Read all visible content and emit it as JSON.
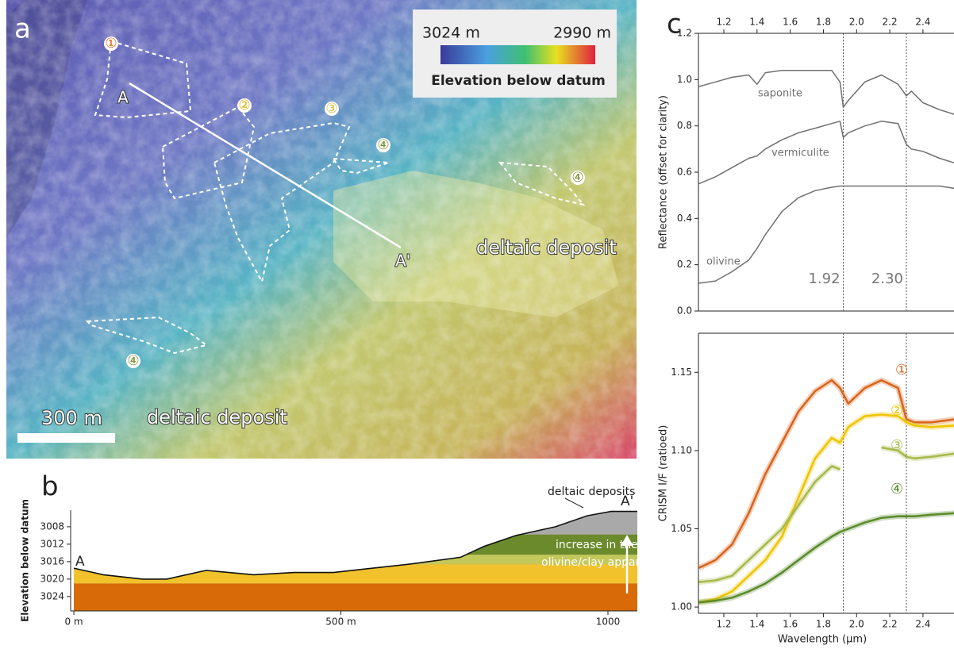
{
  "map": {
    "panel": "a",
    "legend": {
      "min_label": "3024 m",
      "max_label": "2990 m",
      "title": "Elevation below datum"
    },
    "labels": [
      "deltaic deposit",
      "deltaic deposit"
    ],
    "scale_bar": "300 m",
    "profile": {
      "start": "A",
      "end": "A'"
    },
    "regions": [
      "①",
      "②",
      "③",
      "④",
      "④",
      "④"
    ]
  },
  "chart_data": [
    {
      "type": "area",
      "panel": "b",
      "ylabel": "Elevation below datum",
      "x": [
        0,
        55,
        129,
        174,
        248,
        337,
        412,
        486,
        560,
        634,
        724,
        768,
        828,
        902,
        961,
        1006,
        1055
      ],
      "values": [
        3017.5,
        3019,
        3020,
        3020,
        3018,
        3019,
        3018.5,
        3018.5,
        3017.5,
        3016.5,
        3015,
        3012.5,
        3010,
        3008,
        3005.5,
        3004.5,
        3004.5
      ],
      "color": "#111111",
      "layers": [
        {
          "color": "#d86a08",
          "top": 3021
        },
        {
          "color": "#f2c22c",
          "top": 3016.6
        },
        {
          "color": "#c3c85a",
          "top": 3014.4
        },
        {
          "color": "#6b8a2c",
          "top": 3009.8
        }
      ],
      "deposit_color": "#a9a9a9",
      "xlim": [
        -6,
        1055
      ],
      "xticks": [
        {
          "value": 0,
          "label": "0 m"
        },
        {
          "value": 500,
          "label": "500 m"
        },
        1000
      ],
      "xaxis": "bottom",
      "ylim": [
        3027.3,
        3004.2
      ],
      "yticks": [
        3008,
        3012,
        3016,
        3020,
        3024
      ],
      "annotations": [
        "deltaic deposits",
        "increase in the",
        "olivine/clay apparent ratio",
        "A",
        "A'"
      ]
    },
    {
      "type": "line",
      "panel": "c",
      "ylabel": "Reflectance (offset for clarity)",
      "x": [
        1.05,
        1.15,
        1.25,
        1.35,
        1.4,
        1.45,
        1.55,
        1.65,
        1.75,
        1.85,
        1.9,
        1.92,
        1.95,
        2.05,
        2.15,
        2.25,
        2.3,
        2.33,
        2.4,
        2.5,
        2.59
      ],
      "series": [
        {
          "name": "saponite",
          "color": "#707070",
          "values": [
            0.97,
            0.99,
            1.01,
            1.02,
            0.98,
            1.03,
            1.04,
            1.04,
            1.04,
            1.04,
            0.99,
            0.88,
            0.91,
            0.99,
            1.02,
            0.98,
            0.93,
            0.95,
            0.9,
            0.87,
            0.85
          ]
        },
        {
          "name": "vermiculite",
          "color": "#707070",
          "values": [
            0.55,
            0.58,
            0.62,
            0.66,
            0.67,
            0.7,
            0.74,
            0.77,
            0.79,
            0.81,
            0.82,
            0.75,
            0.77,
            0.8,
            0.82,
            0.81,
            0.72,
            0.7,
            0.69,
            0.66,
            0.64
          ]
        },
        {
          "name": "olivine",
          "color": "#707070",
          "values": [
            0.12,
            0.13,
            0.17,
            0.22,
            0.27,
            0.33,
            0.43,
            0.49,
            0.52,
            0.535,
            0.54,
            0.54,
            0.54,
            0.54,
            0.54,
            0.54,
            0.54,
            0.54,
            0.54,
            0.54,
            0.53
          ]
        }
      ],
      "vlines": [
        {
          "value": 1.92,
          "label": "1.92"
        },
        {
          "value": 2.3,
          "label": "2.30"
        }
      ],
      "xlim": [
        1.047,
        2.587
      ],
      "xticks": [
        1.2,
        1.4,
        1.6,
        1.8,
        {
          "value": 2,
          "label": "2.0"
        },
        2.2,
        2.4
      ],
      "xaxis": "top",
      "ylim": [
        0,
        1.2
      ],
      "yticks": [
        {
          "value": 0,
          "label": "0.0"
        },
        0.2,
        0.4,
        0.6,
        0.8,
        {
          "value": 1,
          "label": "1.0"
        },
        1.2
      ]
    },
    {
      "type": "line",
      "ylabel": "CRISM I/F (ratioed)",
      "xlabel": "Wavelength (µm)",
      "x": [
        1.05,
        1.15,
        1.25,
        1.35,
        1.45,
        1.55,
        1.65,
        1.75,
        1.85,
        1.9,
        1.95,
        2.05,
        2.15,
        2.25,
        2.3,
        2.35,
        2.45,
        2.59
      ],
      "series": [
        {
          "name": "①",
          "color": "#d9631a",
          "values": [
            1.025,
            1.03,
            1.04,
            1.06,
            1.085,
            1.105,
            1.125,
            1.138,
            1.145,
            1.14,
            1.13,
            1.14,
            1.145,
            1.14,
            1.12,
            1.118,
            1.118,
            1.12
          ]
        },
        {
          "name": "②",
          "color": "#eec400",
          "values": [
            1.003,
            1.005,
            1.01,
            1.02,
            1.03,
            1.045,
            1.07,
            1.095,
            1.108,
            1.105,
            1.115,
            1.122,
            1.123,
            1.122,
            1.118,
            1.116,
            1.115,
            1.116
          ]
        },
        {
          "name": "③",
          "color": "#a8b84a",
          "values": [
            1.016,
            1.017,
            1.02,
            1.03,
            1.04,
            1.05,
            1.065,
            1.08,
            1.09,
            1.088,
            null,
            null,
            1.102,
            1.1,
            1.096,
            1.095,
            1.096,
            1.098
          ]
        },
        {
          "name": "④",
          "color": "#5a8a2a",
          "values": [
            1.003,
            1.004,
            1.006,
            1.01,
            1.015,
            1.022,
            1.03,
            1.038,
            1.045,
            1.048,
            1.05,
            1.054,
            1.057,
            1.058,
            1.058,
            1.058,
            1.059,
            1.06
          ]
        }
      ],
      "vlines": [
        1.92,
        2.3
      ],
      "xlim": [
        1.047,
        2.587
      ],
      "xticks": [
        1.2,
        1.4,
        1.6,
        1.8,
        {
          "value": 2,
          "label": "2.0"
        },
        2.2,
        2.4
      ],
      "xaxis": "bottom",
      "ylim": [
        0.996,
        1.175
      ],
      "yticks": [
        {
          "value": 1,
          "label": "1.00"
        },
        1.05,
        {
          "value": 1.1,
          "label": "1.10"
        },
        1.15
      ]
    }
  ]
}
